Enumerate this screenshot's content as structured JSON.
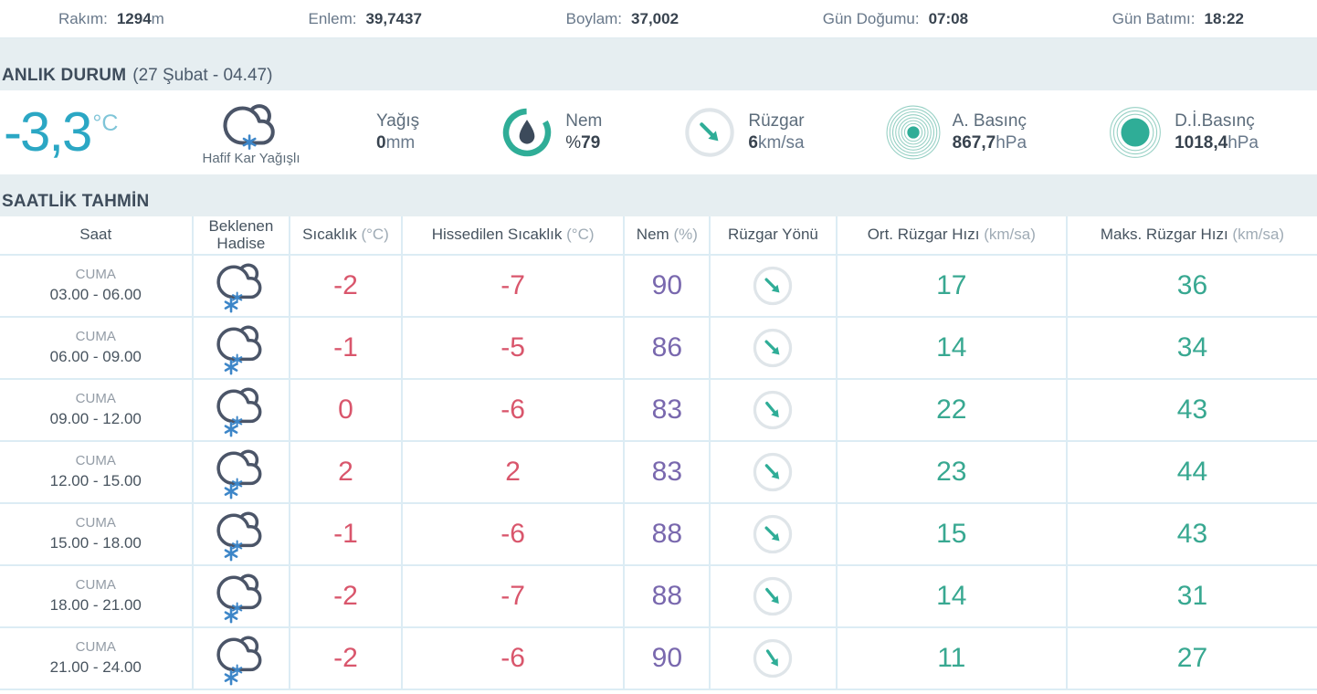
{
  "topbar": {
    "items": [
      {
        "id": "rakim",
        "label": "Rakım:",
        "value": "1294",
        "unit": "m"
      },
      {
        "id": "enlem",
        "label": "Enlem:",
        "value": "39,7437",
        "unit": ""
      },
      {
        "id": "boylam",
        "label": "Boylam:",
        "value": "37,002",
        "unit": ""
      },
      {
        "id": "gun-dogumu",
        "label": "Gün Doğumu:",
        "value": "07:08",
        "unit": ""
      },
      {
        "id": "gun-batimi",
        "label": "Gün Batımı:",
        "value": "18:22",
        "unit": ""
      }
    ]
  },
  "current": {
    "section_title": "ANLIK DURUM",
    "section_subtitle": "(27 Şubat - 04.47)",
    "temperature": "-3,3",
    "temperature_unit": "°C",
    "condition": "Hafif Kar Yağışlı",
    "condition_icon": "light-snow-cloud",
    "metrics": [
      {
        "id": "yagis",
        "label": "Yağış",
        "prefix": "",
        "value": "0",
        "unit": "mm",
        "icon": null
      },
      {
        "id": "nem",
        "label": "Nem",
        "prefix": "%",
        "value": "79",
        "unit": "",
        "icon": "humidity-gauge"
      },
      {
        "id": "ruzgar",
        "label": "Rüzgar",
        "prefix": "",
        "value": "6",
        "unit": "km/sa",
        "icon": "wind-direction"
      },
      {
        "id": "a-basinc",
        "label": "A. Basınç",
        "prefix": "",
        "value": "867,7",
        "unit": "hPa",
        "icon": "pressure-station"
      },
      {
        "id": "di-basinc",
        "label": "D.İ.Basınç",
        "prefix": "",
        "value": "1018,4",
        "unit": "hPa",
        "icon": "pressure-sea-level"
      }
    ]
  },
  "hourly": {
    "section_title": "SAATLİK TAHMİN",
    "columns": [
      {
        "text": "Saat",
        "unit": ""
      },
      {
        "text": "Beklenen Hadise",
        "unit": ""
      },
      {
        "text": "Sıcaklık",
        "unit": "(°C)"
      },
      {
        "text": "Hissedilen Sıcaklık",
        "unit": "(°C)"
      },
      {
        "text": "Nem",
        "unit": "(%)"
      },
      {
        "text": "Rüzgar Yönü",
        "unit": ""
      },
      {
        "text": "Ort. Rüzgar Hızı",
        "unit": "(km/sa)"
      },
      {
        "text": "Maks. Rüzgar Hızı",
        "unit": "(km/sa)"
      }
    ],
    "rows": [
      {
        "day": "CUMA",
        "time": "03.00 - 06.00",
        "condition_icon": "snow-cloud",
        "temp": "-2",
        "feels_like": "-7",
        "humidity": "90",
        "wind_arrow_deg": 45,
        "avg_wind": "17",
        "max_wind": "36"
      },
      {
        "day": "CUMA",
        "time": "06.00 - 09.00",
        "condition_icon": "snow-cloud",
        "temp": "-1",
        "feels_like": "-5",
        "humidity": "86",
        "wind_arrow_deg": 45,
        "avg_wind": "14",
        "max_wind": "34"
      },
      {
        "day": "CUMA",
        "time": "09.00 - 12.00",
        "condition_icon": "snow-cloud",
        "temp": "0",
        "feels_like": "-6",
        "humidity": "83",
        "wind_arrow_deg": 50,
        "avg_wind": "22",
        "max_wind": "43"
      },
      {
        "day": "CUMA",
        "time": "12.00 - 15.00",
        "condition_icon": "snow-cloud",
        "temp": "2",
        "feels_like": "2",
        "humidity": "83",
        "wind_arrow_deg": 47,
        "avg_wind": "23",
        "max_wind": "44"
      },
      {
        "day": "CUMA",
        "time": "15.00 - 18.00",
        "condition_icon": "snow-cloud",
        "temp": "-1",
        "feels_like": "-6",
        "humidity": "88",
        "wind_arrow_deg": 45,
        "avg_wind": "15",
        "max_wind": "43"
      },
      {
        "day": "CUMA",
        "time": "18.00 - 21.00",
        "condition_icon": "snow-cloud",
        "temp": "-2",
        "feels_like": "-7",
        "humidity": "88",
        "wind_arrow_deg": 50,
        "avg_wind": "14",
        "max_wind": "31"
      },
      {
        "day": "CUMA",
        "time": "21.00 - 24.00",
        "condition_icon": "snow-cloud",
        "temp": "-2",
        "feels_like": "-6",
        "humidity": "90",
        "wind_arrow_deg": 56,
        "avg_wind": "11",
        "max_wind": "27"
      }
    ]
  },
  "colors": {
    "accent_teal": "#2fad97",
    "temperature_cyan": "#2ba7c4",
    "negative_temp_red": "#d9566c",
    "humidity_purple": "#7968ae",
    "wind_speed_green": "#38a891",
    "snowflake_blue": "#3d86c8",
    "section_band": "#e6eef1",
    "table_border": "#dcecf4"
  }
}
